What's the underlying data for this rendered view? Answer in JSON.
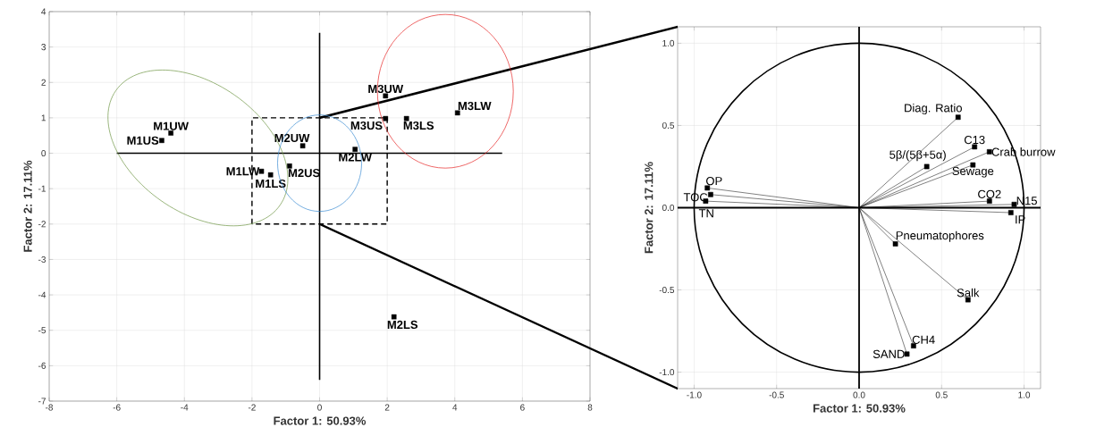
{
  "chart_data": [
    {
      "type": "scatter",
      "xlabel": "Factor 1: 50.93%",
      "ylabel": "Factor 2: 17.11%",
      "xlim": [
        -8,
        8
      ],
      "ylim": [
        -7,
        4
      ],
      "xticks": [
        -8,
        -6,
        -4,
        -2,
        0,
        2,
        4,
        6,
        8
      ],
      "yticks": [
        -7,
        -6,
        -5,
        -4,
        -3,
        -2,
        -1,
        0,
        1,
        2,
        3,
        4
      ],
      "grid": true,
      "marker": "square",
      "series": [
        {
          "name": "M1US",
          "color": "#000000",
          "x": [
            -4.67
          ],
          "values": [
            0.36
          ]
        },
        {
          "name": "M1UW",
          "color": "#000000",
          "x": [
            -4.4
          ],
          "values": [
            0.57
          ]
        },
        {
          "name": "M2UW",
          "color": "#000000",
          "x": [
            -0.5
          ],
          "values": [
            0.21
          ]
        },
        {
          "name": "M3UW",
          "color": "#000000",
          "x": [
            1.95
          ],
          "values": [
            1.62
          ]
        },
        {
          "name": "M3US",
          "color": "#000000",
          "x": [
            1.95
          ],
          "values": [
            0.98
          ]
        },
        {
          "name": "M3LS",
          "color": "#000000",
          "x": [
            2.57
          ],
          "values": [
            0.98
          ]
        },
        {
          "name": "M3LW",
          "color": "#000000",
          "x": [
            4.08
          ],
          "values": [
            1.14
          ]
        },
        {
          "name": "M2LW",
          "color": "#000000",
          "x": [
            1.05
          ],
          "values": [
            0.11
          ]
        },
        {
          "name": "M1LW",
          "color": "#000000",
          "x": [
            -1.72
          ],
          "values": [
            -0.51
          ]
        },
        {
          "name": "M1LS",
          "color": "#000000",
          "x": [
            -1.45
          ],
          "values": [
            -0.61
          ]
        },
        {
          "name": "M2US",
          "color": "#000000",
          "x": [
            -0.89
          ],
          "values": [
            -0.36
          ]
        },
        {
          "name": "M2LS",
          "color": "#000000",
          "x": [
            2.2
          ],
          "values": [
            -4.62
          ]
        }
      ]
    },
    {
      "type": "scatter",
      "xlabel": "Factor 1: 50.93%",
      "ylabel": "Factor 2: 17.11%",
      "xlim": [
        -1.1,
        1.1
      ],
      "ylim": [
        -1.1,
        1.1
      ],
      "xticks": [
        {
          "value": -1,
          "label": "-1.0"
        },
        {
          "value": -0.5,
          "label": "-0.5"
        },
        {
          "value": 0,
          "label": "0.0"
        },
        {
          "value": 0.5,
          "label": "0.5"
        },
        {
          "value": 1,
          "label": "1.0"
        }
      ],
      "yticks": [
        {
          "value": -1,
          "label": "-1.0"
        },
        {
          "value": -0.5,
          "label": "-0.5"
        },
        {
          "value": 0,
          "label": "0.0"
        },
        {
          "value": 0.5,
          "label": "0.5"
        },
        {
          "value": 1,
          "label": "1.0"
        }
      ],
      "grid": true,
      "marker": "square",
      "series": [
        {
          "name": "TOC",
          "type": "line",
          "color": "#000000",
          "x": [
            0,
            -0.9
          ],
          "values": [
            0,
            0.08
          ]
        },
        {
          "name": "OP",
          "type": "line",
          "color": "#000000",
          "x": [
            0,
            -0.92
          ],
          "values": [
            0,
            0.12
          ]
        },
        {
          "name": "TN",
          "type": "line",
          "color": "#000000",
          "x": [
            0,
            -0.93
          ],
          "values": [
            0,
            0.04
          ]
        },
        {
          "name": "Diag. Ratio",
          "type": "line",
          "color": "#000000",
          "x": [
            0,
            0.6
          ],
          "values": [
            0,
            0.55
          ]
        },
        {
          "name": "C13",
          "type": "line",
          "color": "#000000",
          "x": [
            0,
            0.7
          ],
          "values": [
            0,
            0.37
          ]
        },
        {
          "name": "Crab burrow",
          "type": "line",
          "color": "#000000",
          "x": [
            0,
            0.79
          ],
          "values": [
            0,
            0.34
          ]
        },
        {
          "name": "5β/(5β+5α)",
          "type": "line",
          "color": "#000000",
          "x": [
            0,
            0.41
          ],
          "values": [
            0,
            0.25
          ]
        },
        {
          "name": "Sewage",
          "type": "line",
          "color": "#000000",
          "x": [
            0,
            0.69
          ],
          "values": [
            0,
            0.26
          ]
        },
        {
          "name": "CO2",
          "type": "line",
          "color": "#000000",
          "x": [
            0,
            0.79
          ],
          "values": [
            0,
            0.04
          ]
        },
        {
          "name": "N15",
          "type": "line",
          "color": "#000000",
          "x": [
            0,
            0.94
          ],
          "values": [
            0,
            0.02
          ]
        },
        {
          "name": "IP",
          "type": "line",
          "color": "#000000",
          "x": [
            0,
            0.92
          ],
          "values": [
            0,
            -0.03
          ]
        },
        {
          "name": "Pneumatophores",
          "type": "line",
          "color": "#000000",
          "x": [
            0,
            0.22
          ],
          "values": [
            0,
            -0.22
          ]
        },
        {
          "name": "Salk",
          "type": "line",
          "color": "#000000",
          "x": [
            0,
            0.66
          ],
          "values": [
            0,
            -0.56
          ]
        },
        {
          "name": "CH4",
          "type": "line",
          "color": "#000000",
          "x": [
            0,
            0.33
          ],
          "values": [
            0,
            -0.84
          ]
        },
        {
          "name": "SAND",
          "type": "line",
          "color": "#000000",
          "x": [
            0,
            0.29
          ],
          "values": [
            0,
            -0.89
          ]
        }
      ]
    }
  ]
}
